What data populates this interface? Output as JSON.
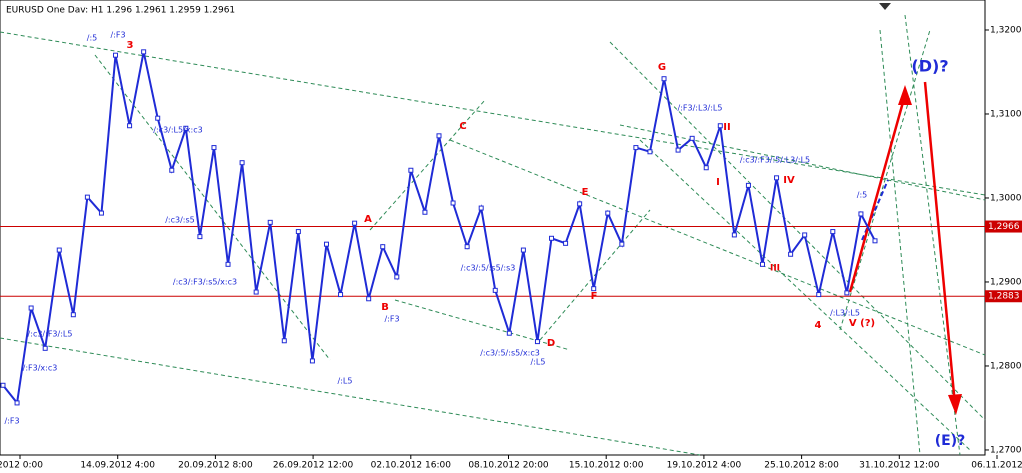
{
  "chart_data": {
    "type": "line",
    "title": "EURUSD One Dav: H1  1.296  1.2961  1.2959  1.2961",
    "x_labels": [
      "2012 0:00",
      "14.09.2012 4:00",
      "20.09.2012 8:00",
      "26.09.2012 12:00",
      "02.10.2012 16:00",
      "08.10.2012 20:00",
      "15.10.2012 0:00",
      "19.10.2012 4:00",
      "25.10.2012 8:00",
      "31.10.2012 12:00",
      "06.11.2012"
    ],
    "series": [
      {
        "name": "wave",
        "color": "#1f2bd6",
        "values": [
          1.2777,
          1.2756,
          1.2869,
          1.2821,
          1.2938,
          1.2861,
          1.3001,
          1.2982,
          1.317,
          1.3086,
          1.3174,
          1.3095,
          1.3033,
          1.3083,
          1.2954,
          1.306,
          1.2921,
          1.3042,
          1.2888,
          1.2971,
          1.283,
          1.296,
          1.2806,
          1.2945,
          1.2885,
          1.297,
          1.288,
          1.2942,
          1.2906,
          1.3033,
          1.2983,
          1.3074,
          1.2994,
          1.2942,
          1.2988,
          1.289,
          1.2839,
          1.2938,
          1.2829,
          1.2952,
          1.2946,
          1.2993,
          1.2892,
          1.2982,
          1.2945,
          1.306,
          1.3055,
          1.3142,
          1.3057,
          1.3071,
          1.3036,
          1.3086,
          1.2956,
          1.3015,
          1.2921,
          1.3024,
          1.2933,
          1.2956,
          1.2885,
          1.296,
          1.2887,
          1.2981,
          1.2949
        ]
      }
    ],
    "levels": [
      {
        "value": 1.2966,
        "label": "1,2966",
        "color": "#cc0000"
      },
      {
        "value": 1.2883,
        "label": "1,2883",
        "color": "#cc0000"
      }
    ],
    "ylim": [
      1.2694,
      1.32357
    ],
    "yticks": [
      {
        "value": 1.27,
        "label": "1,2700"
      },
      {
        "value": 1.28,
        "label": "1,2800"
      },
      {
        "value": 1.29,
        "label": "1,2900"
      },
      {
        "value": 1.3,
        "label": "1,3000"
      },
      {
        "value": 1.31,
        "label": "1,3100"
      },
      {
        "value": 1.32,
        "label": "1,3200"
      }
    ],
    "annotations": [
      "3",
      "A",
      "B",
      "C",
      "D",
      "E",
      "F",
      "G",
      "II",
      "I",
      "III",
      "IV",
      "4",
      "V (?)",
      "(D)?",
      "(E)?",
      "/:5",
      "/:F3",
      "/:F3",
      "/:c3/:F3/:L5",
      "/:F3/x:c3",
      "/:c3/:L5/x:c3",
      "/:c3/:s5",
      "/:c3/:F3/:s5/x:c3",
      "/:F3",
      "/:L5",
      "/:c3/:5/:s5/:s3",
      "/:c3/:5/:s5/x:c3",
      "/:L5",
      "/:F3/:L3/:L5",
      "/:c3/:F3/:5/:L3/:L5",
      "/:L3/:L5",
      "/:5"
    ]
  }
}
